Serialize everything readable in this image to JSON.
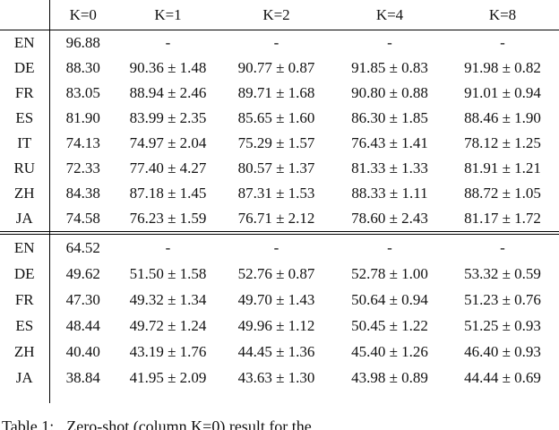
{
  "table": {
    "col_headers": [
      "",
      "K=0",
      "K=1",
      "K=2",
      "K=4",
      "K=8"
    ],
    "block1": {
      "rows": [
        {
          "label": "EN",
          "values": [
            "96.88",
            "-",
            "-",
            "-",
            "-"
          ]
        },
        {
          "label": "DE",
          "values": [
            "88.30",
            "90.36 ± 1.48",
            "90.77 ± 0.87",
            "91.85 ± 0.83",
            "91.98 ± 0.82"
          ]
        },
        {
          "label": "FR",
          "values": [
            "83.05",
            "88.94 ± 2.46",
            "89.71 ± 1.68",
            "90.80 ± 0.88",
            "91.01 ± 0.94"
          ]
        },
        {
          "label": "ES",
          "values": [
            "81.90",
            "83.99 ± 2.35",
            "85.65 ± 1.60",
            "86.30 ± 1.85",
            "88.46 ± 1.90"
          ]
        },
        {
          "label": "IT",
          "values": [
            "74.13",
            "74.97 ± 2.04",
            "75.29 ± 1.57",
            "76.43 ± 1.41",
            "78.12 ± 1.25"
          ]
        },
        {
          "label": "RU",
          "values": [
            "72.33",
            "77.40 ± 4.27",
            "80.57 ± 1.37",
            "81.33 ± 1.33",
            "81.91 ± 1.21"
          ]
        },
        {
          "label": "ZH",
          "values": [
            "84.38",
            "87.18 ± 1.45",
            "87.31 ± 1.53",
            "88.33 ± 1.11",
            "88.72 ± 1.05"
          ]
        },
        {
          "label": "JA",
          "values": [
            "74.58",
            "76.23 ± 1.59",
            "76.71 ± 2.12",
            "78.60 ± 2.43",
            "81.17 ± 1.72"
          ]
        }
      ]
    },
    "block2": {
      "rows": [
        {
          "label": "EN",
          "values": [
            "64.52",
            "-",
            "-",
            "-",
            "-"
          ]
        },
        {
          "label": "DE",
          "values": [
            "49.62",
            "51.50 ± 1.58",
            "52.76 ± 0.87",
            "52.78 ± 1.00",
            "53.32 ± 0.59"
          ]
        },
        {
          "label": "FR",
          "values": [
            "47.30",
            "49.32 ± 1.34",
            "49.70 ± 1.43",
            "50.64 ± 0.94",
            "51.23 ± 0.76"
          ]
        },
        {
          "label": "ES",
          "values": [
            "48.44",
            "49.72 ± 1.24",
            "49.96 ± 1.12",
            "50.45 ± 1.22",
            "51.25 ± 0.93"
          ]
        },
        {
          "label": "ZH",
          "values": [
            "40.40",
            "43.19 ± 1.76",
            "44.45 ± 1.36",
            "45.40 ± 1.26",
            "46.40 ± 0.93"
          ]
        },
        {
          "label": "JA",
          "values": [
            "38.84",
            "41.95 ± 2.09",
            "43.63 ± 1.30",
            "43.98 ± 0.89",
            "44.44 ± 0.69"
          ]
        }
      ]
    }
  },
  "caption": {
    "label": "Table 1:",
    "body": "Zero-shot (column K=0) result for the"
  },
  "colors": {
    "background": "#ffffff",
    "text": "#111111",
    "rule": "#000000"
  }
}
